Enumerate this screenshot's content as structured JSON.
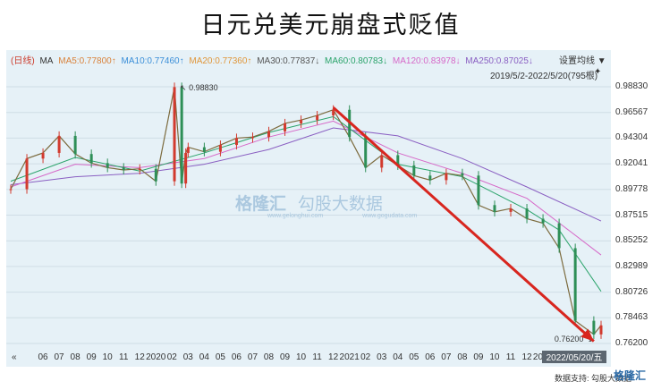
{
  "title": "日元兑美元崩盘式贬值",
  "legend": {
    "period": "(日线)",
    "ma_label": "MA",
    "items": [
      {
        "text": "MA5:0.77800↑",
        "color": "#d9823b"
      },
      {
        "text": "MA10:0.77460↑",
        "color": "#3a8ed8"
      },
      {
        "text": "MA20:0.77360↑",
        "color": "#e0963a"
      },
      {
        "text": "MA30:0.77837↓",
        "color": "#555555"
      },
      {
        "text": "MA60:0.80783↓",
        "color": "#2aa36a"
      },
      {
        "text": "MA120:0.83978↓",
        "color": "#d668c8"
      },
      {
        "text": "MA250:0.87025↓",
        "color": "#8a5fc2"
      }
    ],
    "period_color": "#cc3a2a"
  },
  "settings": "设置均线 ▼",
  "range_text": "2019/5/2-2022/5/20(795根)",
  "pin_icon": "pin-icon",
  "footer": {
    "source": "数据支持:",
    "source_name": "勾股大数据",
    "brand": "格隆汇"
  },
  "watermark": {
    "brand": "格隆汇",
    "site": "www.gelonghui.com",
    "data": "勾股大数据",
    "data_site": "www.gogudata.com"
  },
  "colors": {
    "panel": "#e6f1f7",
    "up": "#d23a2e",
    "down": "#2e8f57",
    "arrow": "#d8261f"
  },
  "chart_data": {
    "type": "line",
    "title": "日元兑美元崩盘式贬值",
    "xlabel": "",
    "ylabel": "",
    "y_ticks": [
      0.9883,
      0.96567,
      0.94304,
      0.92041,
      0.89778,
      0.87515,
      0.85252,
      0.82989,
      0.80726,
      0.78463,
      0.762
    ],
    "ylim": [
      0.762,
      0.9883
    ],
    "x_ticks": [
      "06",
      "07",
      "08",
      "09",
      "10",
      "11",
      "12",
      "2020",
      "02",
      "03",
      "04",
      "05",
      "06",
      "07",
      "08",
      "09",
      "10",
      "11",
      "12",
      "2021",
      "02",
      "03",
      "04",
      "05",
      "06",
      "07",
      "08",
      "09",
      "10",
      "11",
      "12",
      "2022",
      "02",
      "03"
    ],
    "x_start_label": "«",
    "last_date_label": "2022/05/20/五",
    "annotations": [
      {
        "text": "0.98830",
        "at": "2020-03",
        "value": 0.9883
      },
      {
        "text": "0.76200",
        "at": "2022-05",
        "value": 0.762
      }
    ],
    "series": [
      {
        "name": "",
        "kind": "price",
        "x": [
          "2019-05",
          "2019-06",
          "2019-07",
          "2019-08",
          "2019-09",
          "2019-10",
          "2019-11",
          "2019-12",
          "2020-01",
          "2020-02",
          "2020-03a",
          "2020-03b",
          "2020-03c",
          "2020-04",
          "2020-05",
          "2020-06",
          "2020-07",
          "2020-08",
          "2020-09",
          "2020-10",
          "2020-11",
          "2020-12",
          "2021-01",
          "2021-02",
          "2021-03",
          "2021-04",
          "2021-05",
          "2021-06",
          "2021-07",
          "2021-08",
          "2021-09",
          "2021-10",
          "2021-11",
          "2021-12",
          "2022-01",
          "2022-02",
          "2022-03",
          "2022-04",
          "2022-05a",
          "2022-05b"
        ],
        "values": [
          0.898,
          0.925,
          0.93,
          0.945,
          0.929,
          0.921,
          0.917,
          0.915,
          0.916,
          0.905,
          0.988,
          0.903,
          0.93,
          0.935,
          0.931,
          0.937,
          0.943,
          0.944,
          0.949,
          0.956,
          0.959,
          0.963,
          0.968,
          0.944,
          0.917,
          0.928,
          0.919,
          0.91,
          0.906,
          0.912,
          0.91,
          0.884,
          0.878,
          0.881,
          0.872,
          0.868,
          0.846,
          0.782,
          0.77,
          0.778
        ]
      },
      {
        "name": "",
        "kind": "MA250",
        "x": [
          "2019-05",
          "2019-09",
          "2020-01",
          "2020-05",
          "2020-09",
          "2021-01",
          "2021-05",
          "2021-09",
          "2022-01",
          "2022-05b"
        ],
        "values": [
          0.902,
          0.909,
          0.912,
          0.92,
          0.933,
          0.952,
          0.945,
          0.925,
          0.9,
          0.87
        ]
      },
      {
        "name": "",
        "kind": "MA120",
        "x": [
          "2019-05",
          "2019-09",
          "2020-01",
          "2020-05",
          "2020-09",
          "2021-01",
          "2021-05",
          "2021-09",
          "2022-01",
          "2022-05b"
        ],
        "values": [
          0.9,
          0.92,
          0.917,
          0.925,
          0.944,
          0.958,
          0.93,
          0.912,
          0.89,
          0.84
        ]
      },
      {
        "name": "",
        "kind": "MA60",
        "x": [
          "2019-05",
          "2019-09",
          "2020-01",
          "2020-05",
          "2020-09",
          "2021-01",
          "2021-05",
          "2021-09",
          "2022-01",
          "2022-03",
          "2022-05b"
        ],
        "values": [
          0.905,
          0.926,
          0.914,
          0.93,
          0.948,
          0.962,
          0.92,
          0.909,
          0.88,
          0.862,
          0.808
        ]
      }
    ],
    "arrow": {
      "from": {
        "x": "2021-01",
        "value": 0.97
      },
      "to": {
        "x": "2022-05a",
        "value": 0.764
      }
    }
  }
}
